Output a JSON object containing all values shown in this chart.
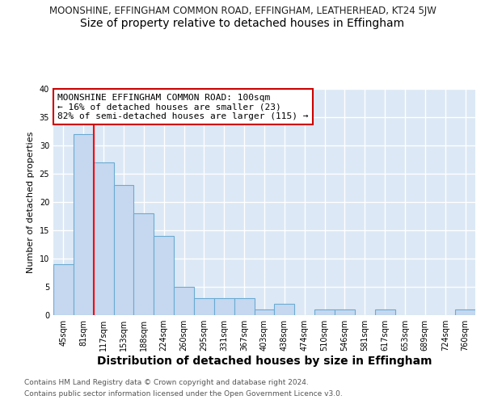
{
  "title_line1": "MOONSHINE, EFFINGHAM COMMON ROAD, EFFINGHAM, LEATHERHEAD, KT24 5JW",
  "title_line2": "Size of property relative to detached houses in Effingham",
  "xlabel": "Distribution of detached houses by size in Effingham",
  "ylabel": "Number of detached properties",
  "categories": [
    "45sqm",
    "81sqm",
    "117sqm",
    "153sqm",
    "188sqm",
    "224sqm",
    "260sqm",
    "295sqm",
    "331sqm",
    "367sqm",
    "403sqm",
    "438sqm",
    "474sqm",
    "510sqm",
    "546sqm",
    "581sqm",
    "617sqm",
    "653sqm",
    "689sqm",
    "724sqm",
    "760sqm"
  ],
  "values": [
    9,
    32,
    27,
    23,
    18,
    14,
    5,
    3,
    3,
    3,
    1,
    2,
    0,
    1,
    1,
    0,
    1,
    0,
    0,
    0,
    1
  ],
  "bar_color": "#c5d8f0",
  "bar_edge_color": "#6aabd2",
  "red_line_x": 1.5,
  "ylim": [
    0,
    40
  ],
  "yticks": [
    0,
    5,
    10,
    15,
    20,
    25,
    30,
    35,
    40
  ],
  "annotation_text": "MOONSHINE EFFINGHAM COMMON ROAD: 100sqm\n← 16% of detached houses are smaller (23)\n82% of semi-detached houses are larger (115) →",
  "annotation_box_color": "#ffffff",
  "annotation_box_edge": "#cc0000",
  "footnote1": "Contains HM Land Registry data © Crown copyright and database right 2024.",
  "footnote2": "Contains public sector information licensed under the Open Government Licence v3.0.",
  "fig_bg_color": "#ffffff",
  "plot_bg_color": "#dce8f5",
  "grid_color": "#ffffff",
  "title1_fontsize": 8.5,
  "title2_fontsize": 10,
  "xlabel_fontsize": 10,
  "ylabel_fontsize": 8,
  "tick_fontsize": 7,
  "annotation_fontsize": 8,
  "footnote_fontsize": 6.5
}
